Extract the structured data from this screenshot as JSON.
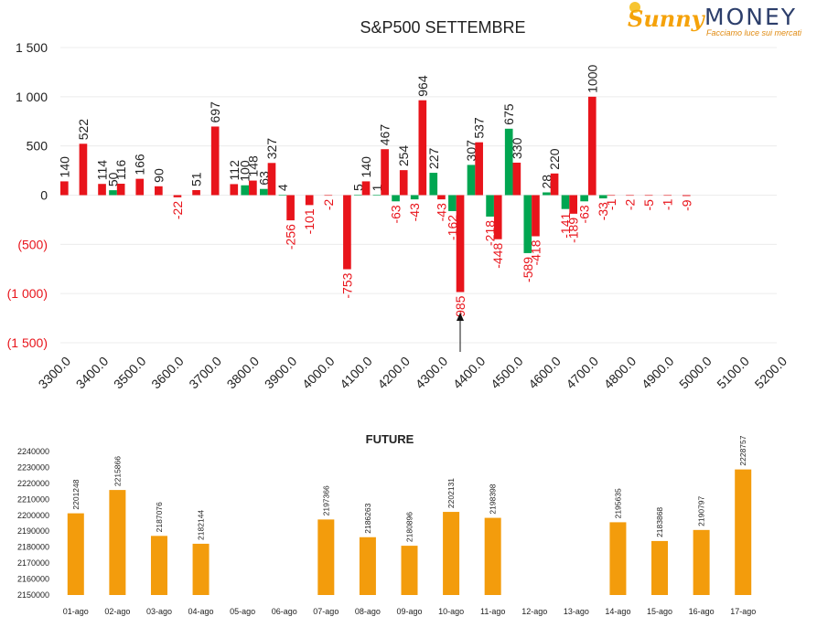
{
  "logo": {
    "brand_left": "Sunny",
    "brand_right": "MONEY",
    "tagline": "Facciamo luce sui mercati"
  },
  "colors": {
    "up": "#00a651",
    "down": "#e8141b",
    "future": "#f39c0c",
    "neg_label": "#e8141b"
  },
  "chart_data": [
    {
      "type": "bar",
      "title": "S&P500 SETTEMBRE",
      "categories": [
        "3300.0",
        "3350",
        "3400.0",
        "3450",
        "3500.0",
        "3550",
        "3600.0",
        "3650",
        "3700.0",
        "3750",
        "3800.0",
        "3850",
        "3900.0",
        "3950",
        "4000.0",
        "4050",
        "4100.0",
        "4150",
        "4200.0",
        "4250",
        "4300.0",
        "4350",
        "4400.0",
        "4450",
        "4500.0",
        "4550",
        "4600.0",
        "4650",
        "4700.0",
        "4750",
        "4800.0",
        "4850",
        "4900.0",
        "4950",
        "5000.0",
        "5050",
        "5100.0",
        "5150",
        "5200.0"
      ],
      "x_tick_labels": [
        "3300.0",
        "3400.0",
        "3500.0",
        "3600.0",
        "3700.0",
        "3800.0",
        "3900.0",
        "4000.0",
        "4100.0",
        "4200.0",
        "4300.0",
        "4400.0",
        "4500.0",
        "4600.0",
        "4700.0",
        "4800.0",
        "4900.0",
        "5000.0",
        "5100.0",
        "5200.0"
      ],
      "series": [
        {
          "color": "#00a651",
          "values": [
            null,
            null,
            null,
            50,
            null,
            null,
            null,
            null,
            null,
            null,
            100,
            63,
            4,
            null,
            null,
            null,
            5,
            1,
            -63,
            -43,
            227,
            -162,
            307,
            -218,
            675,
            -589,
            28,
            -141,
            -63,
            -33,
            null,
            null,
            null,
            null,
            null,
            null,
            null,
            null,
            null
          ]
        },
        {
          "color": "#e8141b",
          "values": [
            140,
            522,
            114,
            116,
            166,
            90,
            -22,
            51,
            697,
            112,
            148,
            327,
            -256,
            -101,
            -2,
            -753,
            140,
            467,
            254,
            964,
            -43,
            -985,
            537,
            -448,
            330,
            -418,
            220,
            -189,
            1000,
            -1,
            -2,
            -5,
            -1,
            -9,
            null,
            null,
            null,
            null,
            null
          ]
        }
      ],
      "y_ticks": [
        "1 500",
        "1 000",
        "500",
        "0",
        "(500)",
        "(1 000)",
        "(1 500)"
      ],
      "ylim": [
        -1500,
        1500
      ],
      "annotation": "arrow pointing up under 4350",
      "legend": "none"
    },
    {
      "type": "bar",
      "title": "FUTURE",
      "categories": [
        "01-ago",
        "02-ago",
        "03-ago",
        "04-ago",
        "05-ago",
        "06-ago",
        "07-ago",
        "08-ago",
        "09-ago",
        "10-ago",
        "11-ago",
        "12-ago",
        "13-ago",
        "14-ago",
        "15-ago",
        "16-ago",
        "17-ago"
      ],
      "values": [
        2201248,
        2215866,
        2187076,
        2182144,
        null,
        null,
        2197366,
        2186263,
        2180896,
        2202131,
        2198398,
        null,
        null,
        2195635,
        2183868,
        2190797,
        2228757
      ],
      "y_ticks": [
        "2240000",
        "2230000",
        "2220000",
        "2210000",
        "2200000",
        "2190000",
        "2180000",
        "2170000",
        "2160000",
        "2150000"
      ],
      "ylim": [
        2150000,
        2240000
      ],
      "legend": "none"
    }
  ]
}
